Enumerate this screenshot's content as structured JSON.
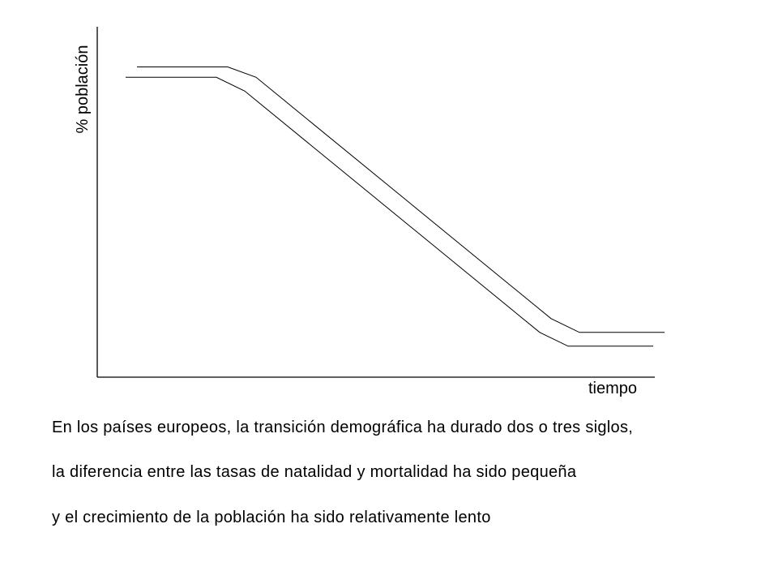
{
  "chart_data": {
    "type": "line",
    "title": "",
    "xlabel": "tiempo",
    "ylabel": "% población",
    "xlim": [
      0,
      100
    ],
    "ylim": [
      0,
      100
    ],
    "grid": false,
    "legend": "none",
    "tick_labels": false,
    "series": [
      {
        "x": [
          7,
          23,
          28,
          80,
          85,
          100
        ],
        "y": [
          90,
          90,
          87,
          17,
          13,
          13
        ]
      },
      {
        "x": [
          5,
          21,
          26,
          78,
          83,
          98
        ],
        "y": [
          87,
          87,
          83,
          13,
          9,
          9
        ]
      }
    ],
    "line_color": "#000000"
  },
  "caption": {
    "line1": "En los países europeos, la transición demográfica ha durado dos o tres siglos,",
    "line2": "la diferencia entre las tasas de natalidad y mortalidad ha sido pequeña",
    "line3": "y el crecimiento de la población ha sido relativamente lento"
  }
}
